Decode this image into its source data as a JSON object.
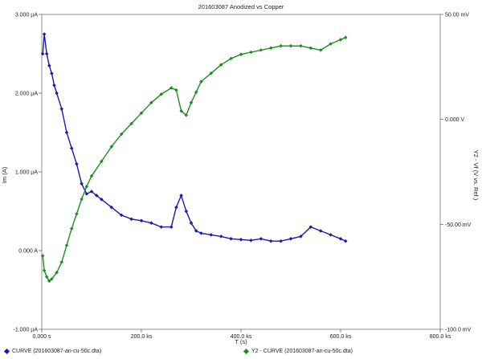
{
  "chart_data": {
    "type": "scatter",
    "title": "201603087 Anodized vs Copper",
    "xlabel": "T (s)",
    "ylabel": "Im (A)",
    "y2label": "Y2 - Vf (V vs. Ref.)",
    "xlim": [
      0,
      800
    ],
    "ylim": [
      -1.0,
      3.0
    ],
    "y2lim": [
      -100,
      50
    ],
    "grid": false,
    "legend_position": "bottom",
    "x_ticks": [
      "0.000 s",
      "200.0 ks",
      "400.0 ks",
      "600.0 ks",
      "800.0 ks"
    ],
    "y_ticks": [
      "3.000 µA",
      "2.000 µA",
      "1.000 µA",
      "0.000 A",
      "-1.000 µA"
    ],
    "y2_ticks": [
      "50.00 mV",
      "0.000 V",
      "-50.00 mV",
      "-100.0 mV"
    ],
    "series": [
      {
        "name": "CURVE (201603087-an-cu-50c.dta)",
        "color": "#1a1aa8",
        "axis": "left",
        "x": [
          2,
          5,
          10,
          15,
          20,
          25,
          30,
          40,
          50,
          60,
          70,
          80,
          90,
          100,
          110,
          120,
          140,
          160,
          180,
          200,
          220,
          240,
          260,
          270,
          280,
          290,
          300,
          310,
          320,
          340,
          360,
          380,
          400,
          420,
          440,
          460,
          480,
          500,
          520,
          540,
          560,
          580,
          600,
          610
        ],
        "values": [
          2.5,
          2.75,
          2.5,
          2.35,
          2.25,
          2.1,
          2.0,
          1.8,
          1.5,
          1.3,
          1.1,
          0.85,
          0.72,
          0.75,
          0.7,
          0.65,
          0.55,
          0.45,
          0.4,
          0.38,
          0.35,
          0.3,
          0.3,
          0.55,
          0.7,
          0.5,
          0.35,
          0.25,
          0.22,
          0.2,
          0.18,
          0.15,
          0.14,
          0.13,
          0.15,
          0.12,
          0.12,
          0.15,
          0.18,
          0.3,
          0.25,
          0.2,
          0.15,
          0.12
        ]
      },
      {
        "name": "Y2 - CURVE (201603087-an-cu-50c.dta)",
        "color": "#1e8c1e",
        "axis": "right",
        "x": [
          2,
          5,
          10,
          15,
          20,
          30,
          40,
          50,
          60,
          70,
          80,
          90,
          100,
          120,
          140,
          160,
          180,
          200,
          220,
          240,
          260,
          270,
          280,
          290,
          300,
          310,
          320,
          340,
          360,
          380,
          400,
          420,
          440,
          460,
          480,
          500,
          520,
          540,
          560,
          580,
          600,
          610
        ],
        "values": [
          -65,
          -72,
          -75,
          -77,
          -76,
          -73,
          -68,
          -60,
          -52,
          -45,
          -38,
          -32,
          -27,
          -20,
          -13,
          -7,
          -2,
          3,
          8,
          12,
          15,
          14,
          4,
          2,
          8,
          13,
          18,
          22,
          26,
          29,
          31,
          32,
          33,
          34,
          35,
          35,
          35,
          34,
          33,
          36,
          38,
          39
        ]
      }
    ]
  },
  "legend": {
    "left_label": "CURVE (201603087-an-cu-50c.dta)",
    "right_label": "Y2 - CURVE (201603087-an-cu-50c.dta)"
  }
}
